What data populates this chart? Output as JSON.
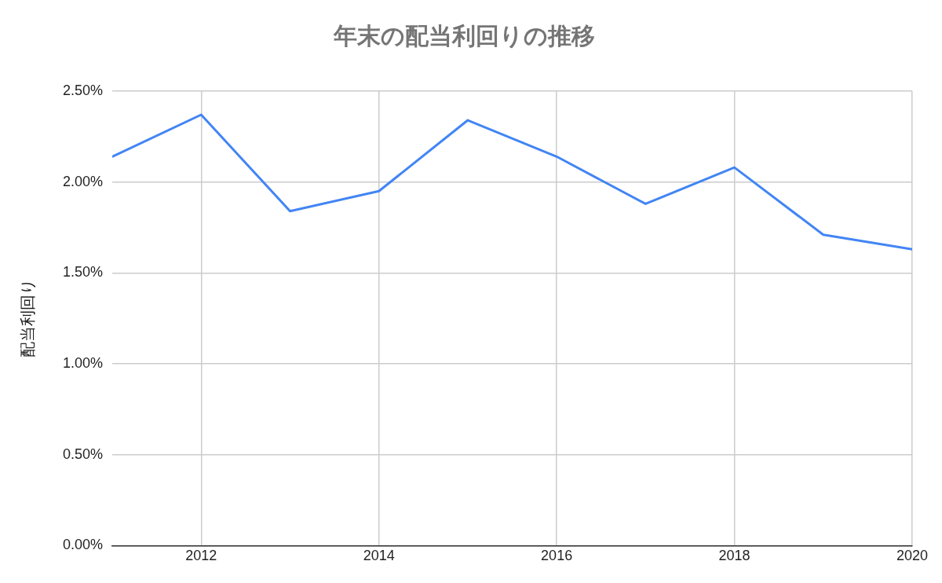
{
  "chart_data": {
    "type": "line",
    "title": "年末の配当利回りの推移",
    "ylabel": "配当利回り",
    "x": [
      2011,
      2012,
      2013,
      2014,
      2015,
      2016,
      2017,
      2018,
      2019,
      2020
    ],
    "series": [
      {
        "color": "#4285f4",
        "values": [
          2.14,
          2.37,
          1.84,
          1.95,
          2.34,
          2.14,
          1.88,
          2.08,
          1.71,
          1.63
        ]
      }
    ],
    "xlim": [
      2011,
      2020
    ],
    "xticks": [
      2012,
      2014,
      2016,
      2018,
      2020
    ],
    "ylim": [
      0,
      2.5
    ],
    "yticks": [
      {
        "value": 0,
        "label": "0.00%"
      },
      {
        "value": 0.5,
        "label": "0.50%"
      },
      {
        "value": 1,
        "label": "1.00%"
      },
      {
        "value": 1.5,
        "label": "1.50%"
      },
      {
        "value": 2,
        "label": "2.00%"
      },
      {
        "value": 2.5,
        "label": "2.50%"
      }
    ],
    "grid": true,
    "legend": false,
    "marker": "none",
    "line_style": "solid"
  }
}
